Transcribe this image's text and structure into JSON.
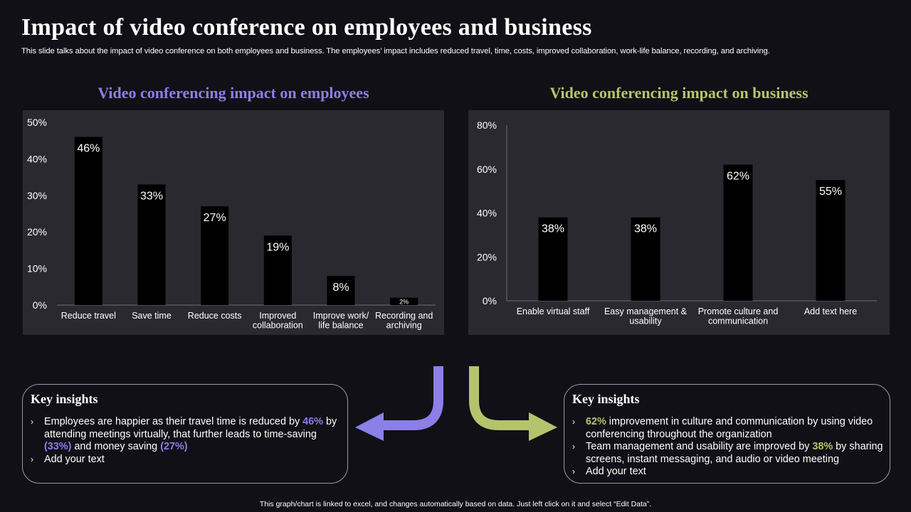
{
  "slide": {
    "title": "Impact of video conference on employees and business",
    "subtitle": "This slide talks about the impact of video conference on both employees and business. The employees’ impact includes reduced travel, time, costs, improved collaboration, work-life balance, recording, and archiving.",
    "footer": "This graph/chart is linked to excel, and changes automatically based on data. Just left click on it and select “Edit Data”."
  },
  "colors": {
    "purple": "#8b7fe8",
    "green": "#b4c46c",
    "panel": "#2a2930",
    "bar": "#000000",
    "background": "#111016"
  },
  "chart_data": [
    {
      "type": "bar",
      "title": "Video conferencing impact on employees",
      "categories": [
        [
          "Reduce travel"
        ],
        [
          "Save time"
        ],
        [
          "Reduce costs"
        ],
        [
          "Improved",
          "collaboration"
        ],
        [
          "Improve work/",
          "life balance"
        ],
        [
          "Recording and",
          "archiving"
        ]
      ],
      "values": [
        46,
        33,
        27,
        19,
        8,
        2
      ],
      "data_labels": [
        "46%",
        "33%",
        "27%",
        "19%",
        "8%",
        "2%"
      ],
      "ylim": [
        0,
        50
      ],
      "yticks": [
        0,
        10,
        20,
        30,
        40,
        50
      ],
      "ytick_labels": [
        "0%",
        "10%",
        "20%",
        "30%",
        "40%",
        "50%"
      ],
      "grid": false,
      "legend": "none"
    },
    {
      "type": "bar",
      "title": "Video conferencing impact on business",
      "categories": [
        [
          "Enable virtual staff"
        ],
        [
          "Easy management &",
          "usability"
        ],
        [
          "Promote culture and",
          "communication"
        ],
        [
          "Add text here"
        ]
      ],
      "values": [
        38,
        38,
        62,
        55
      ],
      "data_labels": [
        "38%",
        "38%",
        "62%",
        "55%"
      ],
      "ylim": [
        0,
        80
      ],
      "yticks": [
        0,
        20,
        40,
        60,
        80
      ],
      "ytick_labels": [
        "0%",
        "20%",
        "40%",
        "60%",
        "80%"
      ],
      "grid": false,
      "legend": "none"
    }
  ],
  "insights_left": {
    "title": "Key insights",
    "bullet_glyph": "›",
    "item1": {
      "t1": "Employees are happier as their travel time is reduced by ",
      "h1": "46%",
      "t2": " by attending meetings virtually, that further leads to time-saving ",
      "h2": "(33%)",
      "t3": " and money saving ",
      "h3": "(27%)"
    },
    "item2": "Add your text"
  },
  "insights_right": {
    "title": "Key insights",
    "bullet_glyph": "›",
    "item1": {
      "h1": "62%",
      "t1": " improvement in culture and communication by using video conferencing throughout the organization"
    },
    "item2": {
      "t1": "Team management and usability are improved by ",
      "h1": "38%",
      "t2": " by sharing screens, instant messaging, and audio or video meeting"
    },
    "item3": "Add your text"
  }
}
